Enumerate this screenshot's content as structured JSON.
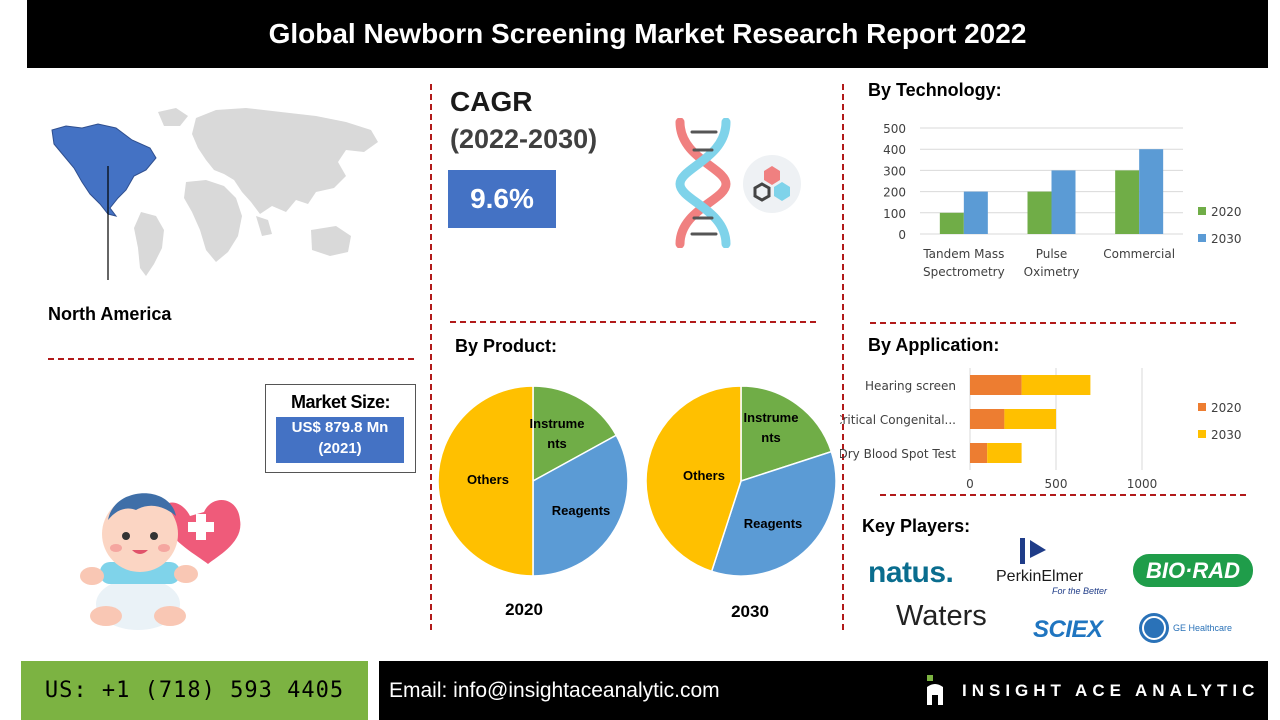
{
  "header": {
    "title": "Global Newborn Screening Market Research Report 2022"
  },
  "region": {
    "label": "North America"
  },
  "cagr": {
    "label": "CAGR",
    "period": "(2022-2030)",
    "value": "9.6%"
  },
  "market_size": {
    "label": "Market Size:",
    "value_line1": "US$ 879.8 Mn",
    "value_line2": "(2021)"
  },
  "sections": {
    "technology": "By Technology:",
    "product": "By Product:",
    "application": "By Application:",
    "players": "Key Players:"
  },
  "colors": {
    "green": "#70ad47",
    "blue": "#5b9bd5",
    "orange": "#ed7d31",
    "yellow": "#ffc000",
    "accent": "#4472c4",
    "divider": "#b11a1a"
  },
  "chart_data": [
    {
      "type": "bar",
      "title": "By Technology:",
      "categories": [
        "Tandem Mass Spectrometry",
        "Pulse Oximetry",
        "Commercial"
      ],
      "category_lines": [
        [
          "Tandem Mass",
          "Spectrometry"
        ],
        [
          "Pulse",
          "Oximetry"
        ],
        [
          "Commercial"
        ]
      ],
      "series": [
        {
          "name": "2020",
          "values": [
            100,
            200,
            300
          ],
          "color": "#70ad47"
        },
        {
          "name": "2030",
          "values": [
            200,
            300,
            400
          ],
          "color": "#5b9bd5"
        }
      ],
      "ylim": [
        0,
        500
      ],
      "yticks": [
        0,
        100,
        200,
        300,
        400,
        500
      ],
      "grid": true,
      "legend": "right"
    },
    {
      "type": "bar",
      "orientation": "horizontal",
      "stacked": true,
      "title": "By Application:",
      "categories": [
        "Hearing screen",
        "Critical Congenital...",
        "Dry Blood Spot Test"
      ],
      "series": [
        {
          "name": "2020",
          "values": [
            300,
            200,
            100
          ],
          "color": "#ed7d31"
        },
        {
          "name": "2030",
          "values": [
            400,
            300,
            200
          ],
          "color": "#ffc000"
        }
      ],
      "xlim": [
        0,
        1000
      ],
      "xticks": [
        0,
        500,
        1000
      ],
      "grid": true,
      "legend": "right"
    },
    {
      "type": "pie",
      "title": "2020",
      "labels": [
        "Instruments",
        "Reagents",
        "Others"
      ],
      "values": [
        17,
        33,
        50
      ],
      "colors": [
        "#70ad47",
        "#5b9bd5",
        "#ffc000"
      ]
    },
    {
      "type": "pie",
      "title": "2030",
      "labels": [
        "Instruments",
        "Reagents",
        "Others"
      ],
      "values": [
        20,
        35,
        45
      ],
      "colors": [
        "#70ad47",
        "#5b9bd5",
        "#ffc000"
      ]
    }
  ],
  "pie_labels": {
    "instruments_line1": "Instrume",
    "instruments_line1_2030": "Instrume",
    "instruments_line2": "nts",
    "reagents": "Reagents",
    "others": "Others"
  },
  "players": {
    "natus": "natus.",
    "perkinelmer": "PerkinElmer",
    "perkinelmer_tagline": "For the Better",
    "biorad": "BIO·RAD",
    "waters": "Waters",
    "sciex": "SCIEX",
    "ge": "GE Healthcare"
  },
  "footer": {
    "phone": "US: +1 (718) 593 4405",
    "email": "Email: info@insightaceanalytic.com",
    "brand": "INSIGHT ACE ANALYTIC"
  }
}
